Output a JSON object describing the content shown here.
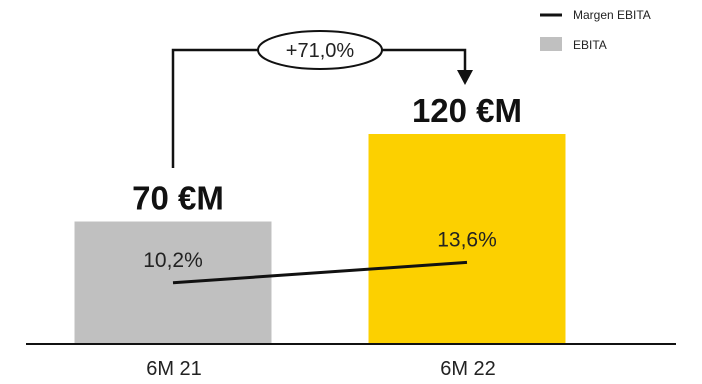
{
  "chart_data": {
    "type": "bar",
    "categories": [
      "6M 21",
      "6M 22"
    ],
    "series": [
      {
        "name": "EBITA",
        "values": [
          70,
          120
        ],
        "value_labels": [
          "70 €M",
          "120 €M"
        ],
        "colors": [
          "#c0c0c0",
          "#fcd000"
        ]
      },
      {
        "name": "Margen EBITA",
        "type": "line",
        "values": [
          10.2,
          13.6
        ],
        "value_labels": [
          "10,2%",
          "13,6%"
        ],
        "color": "#111111"
      }
    ],
    "growth_annotation": "+71,0%",
    "legend": {
      "position": "top-right",
      "items": [
        {
          "label": "Margen EBITA",
          "kind": "line",
          "color": "#111111"
        },
        {
          "label": "EBITA",
          "kind": "box",
          "color": "#c0c0c0"
        }
      ]
    },
    "ylim": [
      0,
      160
    ],
    "grid": false
  }
}
